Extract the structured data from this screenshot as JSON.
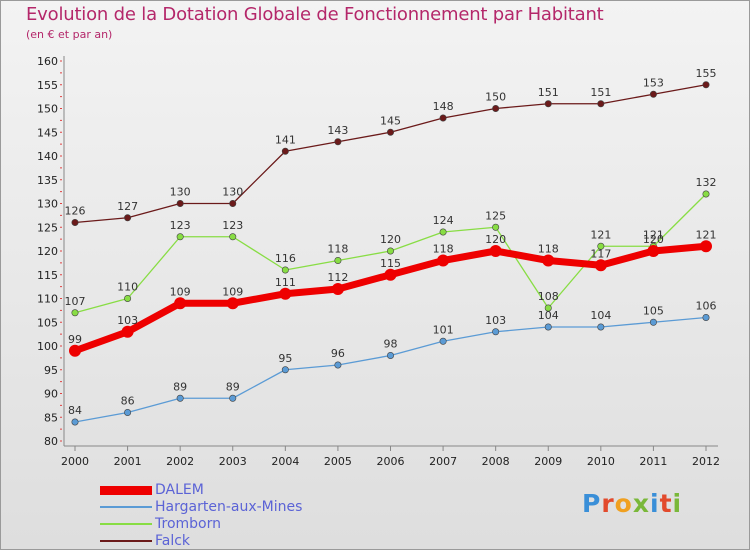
{
  "title": "Evolution de la Dotation Globale de Fonctionnement par Habitant",
  "subtitle": "(en € et par an)",
  "logo": {
    "text": "Proxiti",
    "colors": [
      "#3a8fd8",
      "#e24a2c",
      "#f0a020",
      "#7ab83a",
      "#3a8fd8",
      "#e24a2c",
      "#7ab83a"
    ]
  },
  "chart_data": {
    "type": "line",
    "title": "Evolution de la Dotation Globale de Fonctionnement par Habitant",
    "subtitle": "(en € et par an)",
    "x": [
      "2000",
      "2001",
      "2002",
      "2003",
      "2004",
      "2005",
      "2006",
      "2007",
      "2008",
      "2009",
      "2010",
      "2011",
      "2012"
    ],
    "ylim": [
      80,
      160
    ],
    "yticks": [
      80,
      85,
      90,
      95,
      100,
      105,
      110,
      115,
      120,
      125,
      130,
      135,
      140,
      145,
      150,
      155,
      160
    ],
    "grid": false,
    "legend_position": "bottom-left",
    "series": [
      {
        "name": "DALEM",
        "color": "#ee0000",
        "width": "thick",
        "values": [
          99,
          103,
          109,
          109,
          111,
          112,
          115,
          118,
          120,
          118,
          117,
          120,
          121
        ]
      },
      {
        "name": "Hargarten-aux-Mines",
        "color": "#5b9bd5",
        "width": "thin",
        "values": [
          84,
          86,
          89,
          89,
          95,
          96,
          98,
          101,
          103,
          104,
          104,
          105,
          106
        ]
      },
      {
        "name": "Tromborn",
        "color": "#88dd44",
        "width": "thin",
        "values": [
          107,
          110,
          123,
          123,
          116,
          118,
          120,
          124,
          125,
          108,
          121,
          121,
          132
        ]
      },
      {
        "name": "Falck",
        "color": "#6b1a1a",
        "width": "thin",
        "values": [
          126,
          127,
          130,
          130,
          141,
          143,
          145,
          148,
          150,
          151,
          151,
          153,
          155
        ]
      }
    ]
  }
}
